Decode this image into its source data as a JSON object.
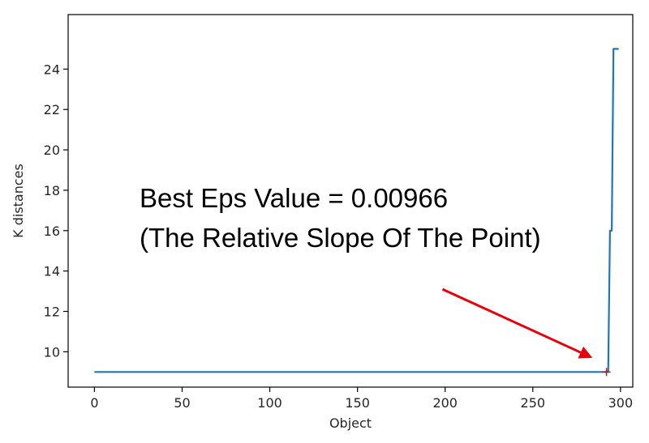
{
  "chart_data": {
    "type": "line",
    "title": "",
    "xlabel": "Object",
    "ylabel": "K distances",
    "xlim": [
      -15,
      307
    ],
    "ylim": [
      8.25,
      26.7
    ],
    "xticks": [
      0,
      50,
      100,
      150,
      200,
      250,
      300
    ],
    "yticks": [
      10,
      12,
      14,
      16,
      18,
      20,
      22,
      24
    ],
    "grid": false,
    "legend": "none",
    "series": [
      {
        "color": "#1f77b4",
        "x": [
          0,
          292,
          293,
          294,
          295,
          296,
          297,
          298,
          299
        ],
        "y": [
          9.0,
          9.0,
          9.0,
          16.0,
          16.0,
          25.0,
          25.0,
          25.0,
          25.0
        ]
      }
    ],
    "marker": {
      "x": 292,
      "y": 9.0,
      "color": "#e8000b"
    },
    "annotation": {
      "lines": [
        "Best Eps Value = 0.00966",
        "(The Relative Slope Of The Point)"
      ],
      "arrow_color": "#e8000b",
      "arrow_from": [
        198.5,
        13.1
      ],
      "arrow_to": [
        284,
        9.7
      ]
    }
  }
}
